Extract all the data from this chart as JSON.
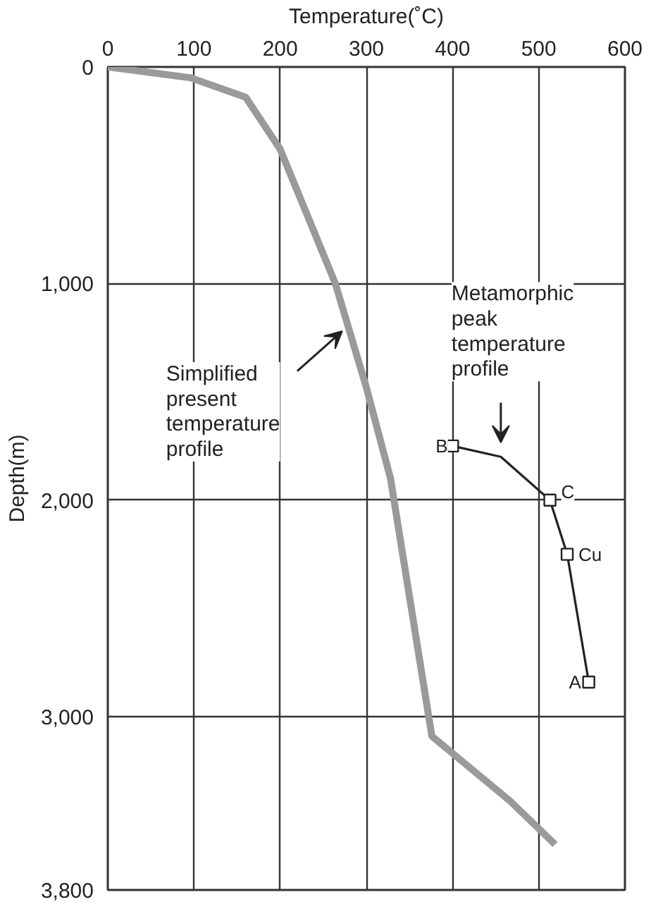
{
  "chart_data": {
    "type": "line",
    "xlabel": "Temperature(˚C)",
    "ylabel": "Depth(m)",
    "xlim": [
      0,
      600
    ],
    "xticks": [
      0,
      100,
      200,
      300,
      400,
      500,
      600
    ],
    "ylim": [
      3800,
      0
    ],
    "yticks": [
      0,
      {
        "value": 1000,
        "label": "1,000"
      },
      {
        "value": 2000,
        "label": "2,000"
      },
      {
        "value": 3000,
        "label": "3,000"
      },
      {
        "value": 3800,
        "label": "3,800"
      }
    ],
    "grid": true,
    "series": [
      {
        "type": "line",
        "color": "#9a9a9a",
        "line_style": "solid",
        "x": [
          0,
          96,
          160,
          200,
          264,
          300,
          328,
          376,
          467,
          519
        ],
        "values": [
          0,
          50,
          140,
          380,
          1000,
          1480,
          1900,
          3090,
          3390,
          3590
        ]
      },
      {
        "type": "line",
        "color": "#222222",
        "line_style": "solid",
        "x": [
          400,
          456,
          513,
          533,
          558
        ],
        "values": [
          1750,
          1800,
          2000,
          2250,
          2840
        ]
      },
      {
        "type": "scatter",
        "color": "#222222",
        "marker": "square",
        "x": [
          400,
          513,
          533,
          558
        ],
        "values": [
          1750,
          2000,
          2250,
          2840
        ]
      }
    ],
    "annotations": [
      {
        "text": "Simplified\npresent\ntemperature\nprofile",
        "x": 272,
        "y": 1220
      },
      "Metamorphic\npeak\ntemperature\nprofile",
      {
        "text": "B",
        "x": 400,
        "y": 1750
      },
      {
        "text": "C",
        "x": 513,
        "y": 2000
      },
      {
        "text": "Cu",
        "x": 533,
        "y": 2250
      },
      {
        "text": "A",
        "x": 558,
        "y": 2840
      }
    ]
  }
}
